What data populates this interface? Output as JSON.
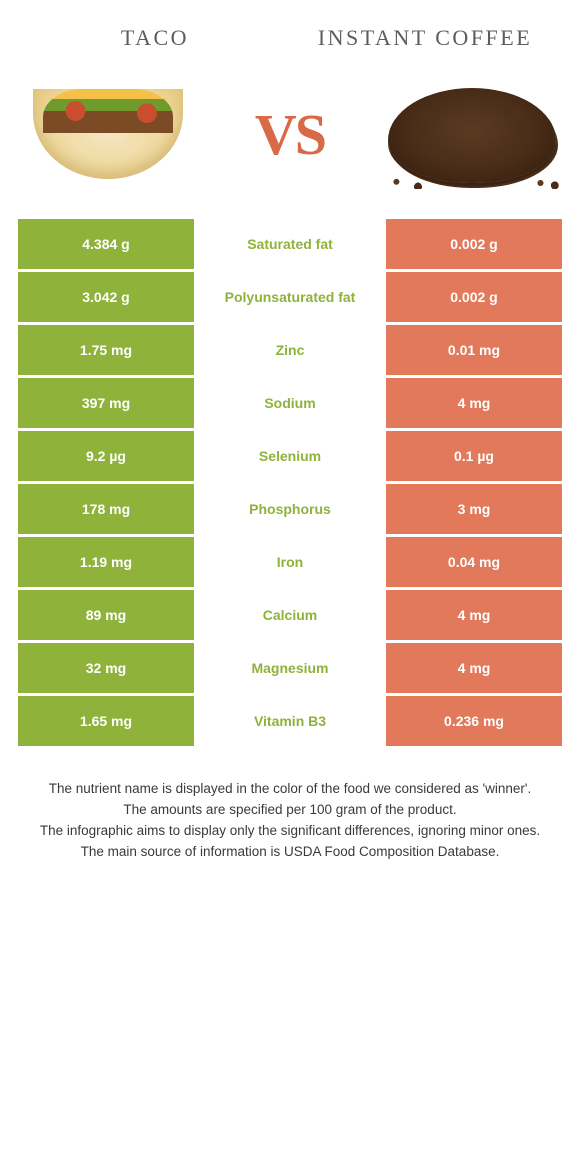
{
  "colors": {
    "green": "#8fb23b",
    "orange": "#e2795a",
    "midText": "#8fb23b",
    "titleText": "#5d5d5d",
    "vsText": "#d86a48"
  },
  "food_a": {
    "name": "TACO"
  },
  "food_b": {
    "name": "INSTANT COFFEE"
  },
  "vs_label": "VS",
  "rows": [
    {
      "left": "4.384 g",
      "nutrient": "Saturated fat",
      "right": "0.002 g",
      "winner": "a"
    },
    {
      "left": "3.042 g",
      "nutrient": "Polyunsaturated fat",
      "right": "0.002 g",
      "winner": "a"
    },
    {
      "left": "1.75 mg",
      "nutrient": "Zinc",
      "right": "0.01 mg",
      "winner": "a"
    },
    {
      "left": "397 mg",
      "nutrient": "Sodium",
      "right": "4 mg",
      "winner": "a"
    },
    {
      "left": "9.2 µg",
      "nutrient": "Selenium",
      "right": "0.1 µg",
      "winner": "a"
    },
    {
      "left": "178 mg",
      "nutrient": "Phosphorus",
      "right": "3 mg",
      "winner": "a"
    },
    {
      "left": "1.19 mg",
      "nutrient": "Iron",
      "right": "0.04 mg",
      "winner": "a"
    },
    {
      "left": "89 mg",
      "nutrient": "Calcium",
      "right": "4 mg",
      "winner": "a"
    },
    {
      "left": "32 mg",
      "nutrient": "Magnesium",
      "right": "4 mg",
      "winner": "a"
    },
    {
      "left": "1.65 mg",
      "nutrient": "Vitamin B3",
      "right": "0.236 mg",
      "winner": "a"
    }
  ],
  "footnotes": [
    "The nutrient name is displayed in the color of the food we considered as 'winner'.",
    "The amounts are specified per 100 gram of the product.",
    "The infographic aims to display only the significant differences, ignoring minor ones.",
    "The main source of information is USDA Food Composition Database."
  ]
}
